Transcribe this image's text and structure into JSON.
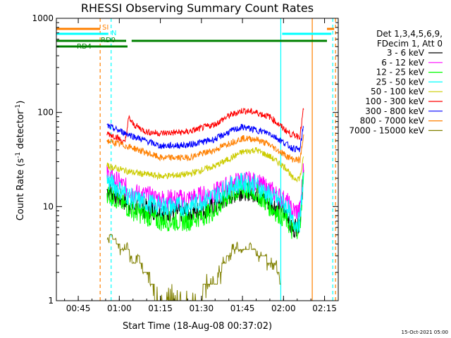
{
  "chart_data": {
    "type": "line",
    "title": "RHESSI Observing Summary Count Rates",
    "xlabel": "Start Time (18-Aug-08 00:37:02)",
    "ylabel_main": "Count Rate (s",
    "ylabel_sup": "-1",
    "ylabel_tail": " detector",
    "ylabel_end": ")",
    "yscale": "log",
    "ylim": [
      1,
      1000
    ],
    "xlim_minutes": [
      37.0,
      140.0
    ],
    "x_ticks": [
      {
        "minutes": 45,
        "label": "00:45"
      },
      {
        "minutes": 60,
        "label": "01:00"
      },
      {
        "minutes": 75,
        "label": "01:15"
      },
      {
        "minutes": 90,
        "label": "01:30"
      },
      {
        "minutes": 105,
        "label": "01:45"
      },
      {
        "minutes": 120,
        "label": "02:00"
      },
      {
        "minutes": 135,
        "label": "02:15"
      }
    ],
    "y_ticks": [
      {
        "value": 1,
        "label": "1"
      },
      {
        "value": 10,
        "label": "10"
      },
      {
        "value": 100,
        "label": "100"
      },
      {
        "value": 1000,
        "label": "1000"
      }
    ],
    "legend_header": [
      "Det 1,3,4,5,6,9,",
      "FDecim 1, Att 0"
    ],
    "legend_position": "right",
    "series": [
      {
        "name": "3 - 6 keV",
        "color": "#000000",
        "x": [
          55.5,
          65,
          75,
          85,
          95,
          100,
          105,
          110,
          115,
          121.5,
          123,
          126,
          127.5
        ],
        "y": [
          15,
          10,
          9,
          8.5,
          10,
          13,
          15,
          14,
          11,
          8.5,
          5.5,
          7,
          25
        ]
      },
      {
        "name": "6 - 12 keV",
        "color": "#ff00ff",
        "x": [
          55.5,
          65,
          75,
          85,
          95,
          100,
          105,
          110,
          115,
          121.5,
          123,
          126,
          127.5
        ],
        "y": [
          22,
          14,
          12,
          12,
          14,
          17,
          19,
          18,
          15,
          11,
          9,
          9,
          30
        ]
      },
      {
        "name": "12 - 25 keV",
        "color": "#00ff00",
        "x": [
          55.5,
          65,
          75,
          85,
          95,
          100,
          105,
          110,
          115,
          121.5,
          123,
          126,
          127.5
        ],
        "y": [
          14,
          9,
          7,
          7,
          9,
          13,
          15,
          14,
          10,
          7,
          5.5,
          6,
          30
        ]
      },
      {
        "name": "25 - 50 keV",
        "color": "#00ffff",
        "x": [
          55.5,
          65,
          75,
          85,
          95,
          100,
          105,
          110,
          115,
          121.5,
          123,
          126,
          127.5
        ],
        "y": [
          19,
          12,
          10,
          10,
          13,
          16,
          18,
          17,
          13,
          10,
          6.8,
          6.8,
          25
        ]
      },
      {
        "name": "50 - 100 keV",
        "color": "#cccc00",
        "x": [
          55.5,
          65,
          75,
          85,
          95,
          100,
          105,
          110,
          115,
          121.5,
          123,
          126,
          127.5
        ],
        "y": [
          27,
          23,
          21,
          22,
          27,
          32,
          38,
          40,
          34,
          25,
          20,
          20,
          35
        ]
      },
      {
        "name": "100 - 300 keV",
        "color": "#ff0000",
        "x": [
          55.5,
          59,
          62,
          63.5,
          65,
          70,
          75,
          85,
          95,
          100,
          105,
          110,
          115,
          121.5,
          123,
          126,
          127.5
        ],
        "y": [
          60,
          55,
          47,
          88,
          75,
          62,
          60,
          62,
          75,
          92,
          105,
          100,
          90,
          62,
          58,
          56,
          120
        ]
      },
      {
        "name": "300 - 800 keV",
        "color": "#0000ff",
        "x": [
          55.5,
          65,
          75,
          85,
          95,
          100,
          105,
          110,
          115,
          121.5,
          123,
          126,
          127.5
        ],
        "y": [
          72,
          56,
          44,
          45,
          52,
          62,
          70,
          65,
          60,
          45,
          42,
          40,
          80
        ]
      },
      {
        "name": "800 - 7000 keV",
        "color": "#ff8000",
        "x": [
          55.5,
          65,
          75,
          85,
          95,
          100,
          105,
          110,
          115,
          121.5,
          123,
          126,
          127.5
        ],
        "y": [
          50,
          42,
          33,
          33,
          40,
          47,
          53,
          52,
          45,
          34,
          32,
          31,
          60
        ]
      },
      {
        "name": "7000 - 15000 keV",
        "color": "#808000",
        "x": [
          55.5,
          57,
          59,
          61,
          63,
          65,
          67,
          69,
          71,
          73,
          75,
          77,
          80,
          85,
          95,
          98,
          100,
          103,
          105,
          108,
          110,
          113,
          115,
          118,
          119
        ],
        "y": [
          4.5,
          5,
          4.2,
          3.5,
          3.8,
          2.5,
          3,
          2,
          1.8,
          1.2,
          1,
          1,
          1,
          1,
          1.5,
          2.5,
          3,
          3.8,
          3.5,
          3.8,
          3.2,
          3,
          2.5,
          2.2,
          1.5
        ]
      }
    ],
    "attenuator_bars": [
      {
        "label": "SI",
        "color": "#ff8000",
        "start": 37,
        "end": 53
      },
      {
        "label": "N",
        "color": "#00ffff",
        "start": 37,
        "end": 56
      },
      {
        "label": "RD0",
        "color": "#008000",
        "start": 37,
        "end": 140
      },
      {
        "label": "RD4",
        "color": "#008000",
        "start": 37,
        "end": 63
      }
    ],
    "vertical_markers": [
      {
        "minutes": 53.0,
        "color": "#ff8000",
        "style": "dashed"
      },
      {
        "minutes": 57.0,
        "color": "#00ffff",
        "style": "dashed"
      },
      {
        "minutes": 119.0,
        "color": "#00ffff",
        "style": "solid"
      },
      {
        "minutes": 130.5,
        "color": "#ff8000",
        "style": "solid"
      },
      {
        "minutes": 138.0,
        "color": "#00ffff",
        "style": "dashed"
      },
      {
        "minutes": 139.0,
        "color": "#ff8000",
        "style": "dashed"
      }
    ],
    "footer_date": "15-Oct-2021 05:00"
  }
}
